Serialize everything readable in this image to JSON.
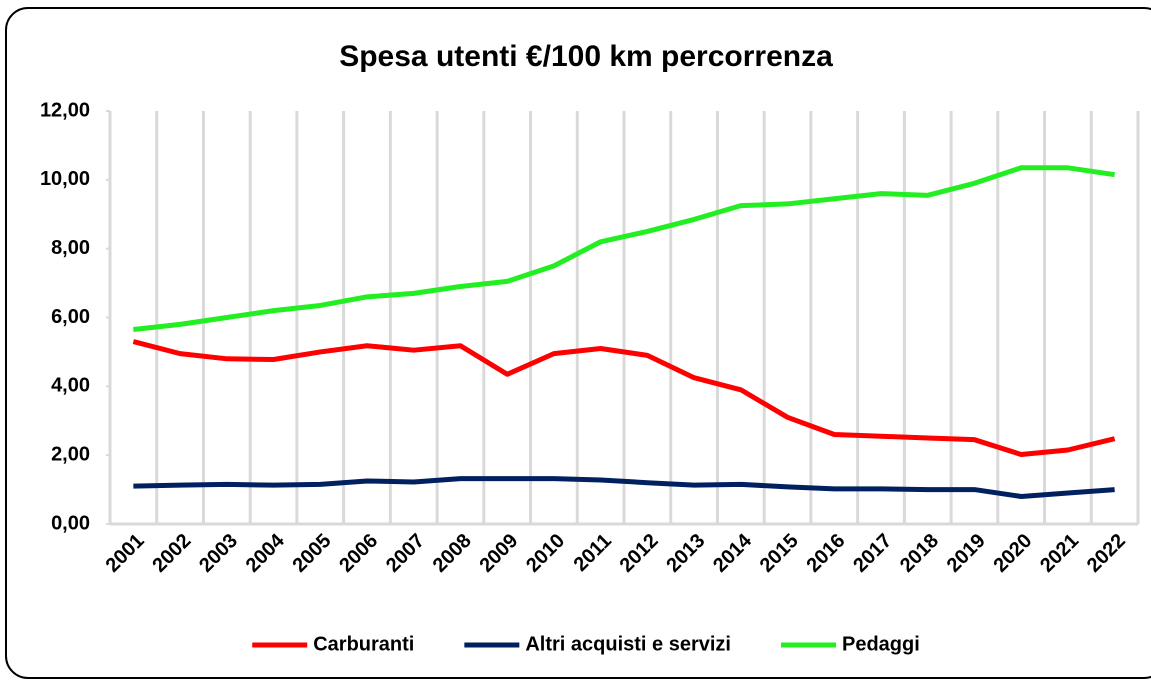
{
  "chart_data": {
    "type": "line",
    "title": "Spesa utenti €/100 km percorrenza",
    "categories": [
      "2001",
      "2002",
      "2003",
      "2004",
      "2005",
      "2006",
      "2007",
      "2008",
      "2009",
      "2010",
      "2011",
      "2012",
      "2013",
      "2014",
      "2015",
      "2016",
      "2017",
      "2018",
      "2019",
      "2020",
      "2021",
      "2022"
    ],
    "series": [
      {
        "name": "Carburanti",
        "color": "#ff0000",
        "values": [
          5.3,
          4.95,
          4.8,
          4.78,
          5.0,
          5.18,
          5.05,
          5.18,
          4.35,
          4.95,
          5.1,
          4.9,
          4.25,
          3.9,
          3.1,
          2.6,
          2.55,
          2.5,
          2.45,
          2.02,
          2.15,
          2.48
        ]
      },
      {
        "name": "Altri acquisti e servizi",
        "color": "#002060",
        "values": [
          1.1,
          1.13,
          1.15,
          1.13,
          1.15,
          1.25,
          1.22,
          1.32,
          1.32,
          1.32,
          1.28,
          1.2,
          1.13,
          1.15,
          1.08,
          1.02,
          1.02,
          1.0,
          1.0,
          0.8,
          0.9,
          1.0
        ]
      },
      {
        "name": "Pedaggi",
        "color": "#22ee22",
        "values": [
          5.65,
          5.8,
          6.0,
          6.2,
          6.35,
          6.6,
          6.7,
          6.9,
          7.05,
          7.5,
          8.2,
          8.5,
          8.85,
          9.25,
          9.3,
          9.45,
          9.6,
          9.55,
          9.9,
          10.35,
          10.35,
          10.15
        ]
      }
    ],
    "ylim": [
      0,
      12
    ],
    "yticks": [
      {
        "value": 0,
        "label": "0,00"
      },
      {
        "value": 2,
        "label": "2,00"
      },
      {
        "value": 4,
        "label": "4,00"
      },
      {
        "value": 6,
        "label": "6,00"
      },
      {
        "value": 8,
        "label": "8,00"
      },
      {
        "value": 10,
        "label": "10,00"
      },
      {
        "value": 12,
        "label": "12,00"
      }
    ],
    "grid": true,
    "legend": "bottom"
  }
}
